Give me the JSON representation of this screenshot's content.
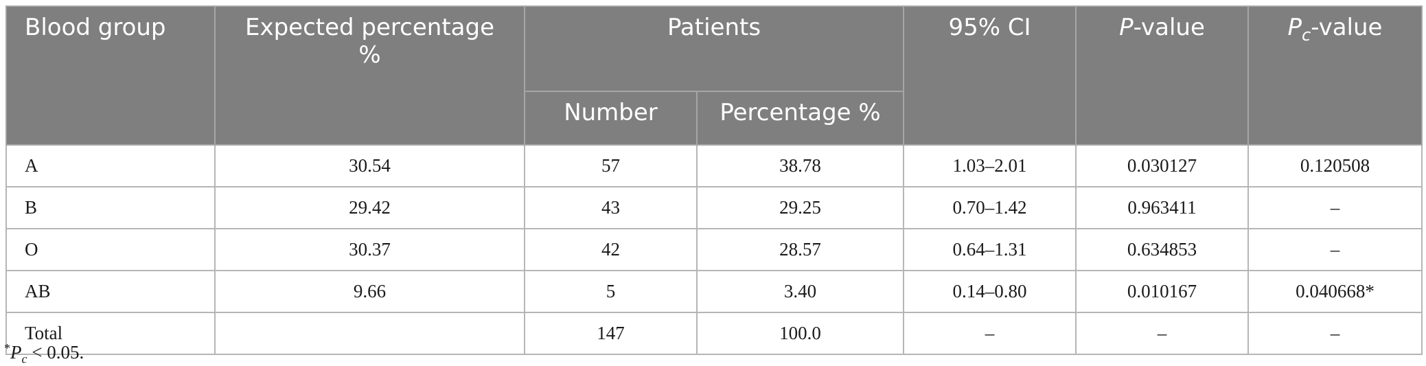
{
  "table": {
    "headers": {
      "blood_group": "Blood group",
      "expected_percentage_line1": "Expected percentage",
      "expected_percentage_line2": "%",
      "patients": "Patients",
      "number": "Number",
      "percentage": "Percentage %",
      "ci": "95% CI",
      "p_value_italic": "P",
      "p_value_suffix": "-value",
      "pc_value_italic": "P",
      "pc_value_sub": "c",
      "pc_value_suffix": "-value"
    },
    "rows": [
      {
        "group": "A",
        "expected": "30.54",
        "number": "57",
        "percentage": "38.78",
        "ci": "1.03–2.01",
        "p": "0.030127",
        "pc": "0.120508"
      },
      {
        "group": "B",
        "expected": "29.42",
        "number": "43",
        "percentage": "29.25",
        "ci": "0.70–1.42",
        "p": "0.963411",
        "pc": "–"
      },
      {
        "group": "O",
        "expected": "30.37",
        "number": "42",
        "percentage": "28.57",
        "ci": "0.64–1.31",
        "p": "0.634853",
        "pc": "–"
      },
      {
        "group": "AB",
        "expected": "9.66",
        "number": "5",
        "percentage": "3.40",
        "ci": "0.14–0.80",
        "p": "0.010167",
        "pc": "0.040668*"
      },
      {
        "group": "Total",
        "expected": "",
        "number": "147",
        "percentage": "100.0",
        "ci": "–",
        "p": "–",
        "pc": "–"
      }
    ]
  },
  "footnote": {
    "marker": "*",
    "p": "P",
    "sub": "c",
    "text": " < 0.05."
  }
}
